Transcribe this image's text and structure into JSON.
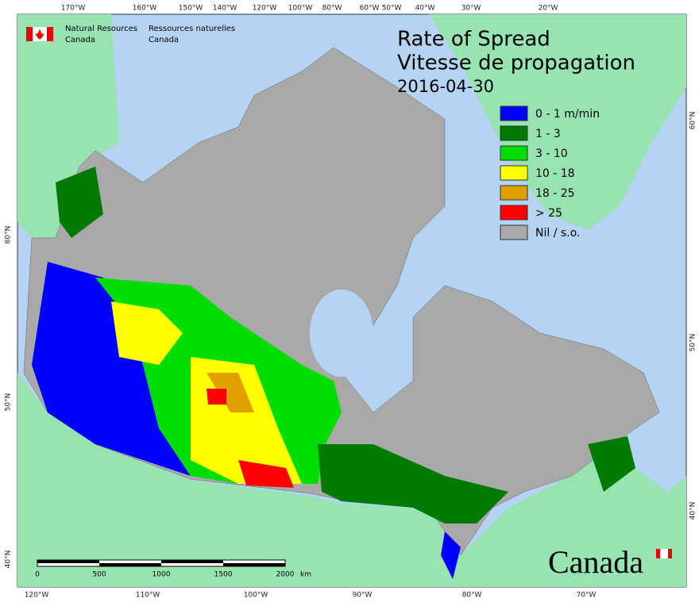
{
  "header": {
    "agency_en": [
      "Natural Resources",
      "Canada"
    ],
    "agency_fr": [
      "Ressources naturelles",
      "Canada"
    ]
  },
  "title": {
    "line1": "Rate of Spread",
    "line2": "Vitesse de propagation",
    "date": "2016-04-30"
  },
  "legend": [
    {
      "label": "0 - 1 m/min",
      "color": "#0000ff"
    },
    {
      "label": "1 - 3",
      "color": "#007a00"
    },
    {
      "label": "3 - 10",
      "color": "#00dd00"
    },
    {
      "label": "10 - 18",
      "color": "#ffff00"
    },
    {
      "label": "18 - 25",
      "color": "#e0a000"
    },
    {
      "label": "> 25",
      "color": "#ff0000"
    },
    {
      "label": "Nil / s.o.",
      "color": "#a9a9a9"
    }
  ],
  "graticule": {
    "top": [
      "170°W",
      "160°W",
      "150°W",
      "140°W",
      "120°W",
      "100°W",
      "80°W",
      "60°W",
      "50°W",
      "40°W",
      "30°W",
      "20°W"
    ],
    "bottom": [
      "120°W",
      "110°W",
      "100°W",
      "90°W",
      "80°W",
      "70°W"
    ],
    "left": [
      "60°N",
      "50°N",
      "40°N"
    ],
    "right": [
      "60°N",
      "50°N",
      "40°N"
    ]
  },
  "scale_bar": {
    "ticks": [
      "0",
      "500",
      "1000",
      "1500",
      "2000"
    ],
    "unit": "km"
  },
  "wordmark": "Canada"
}
